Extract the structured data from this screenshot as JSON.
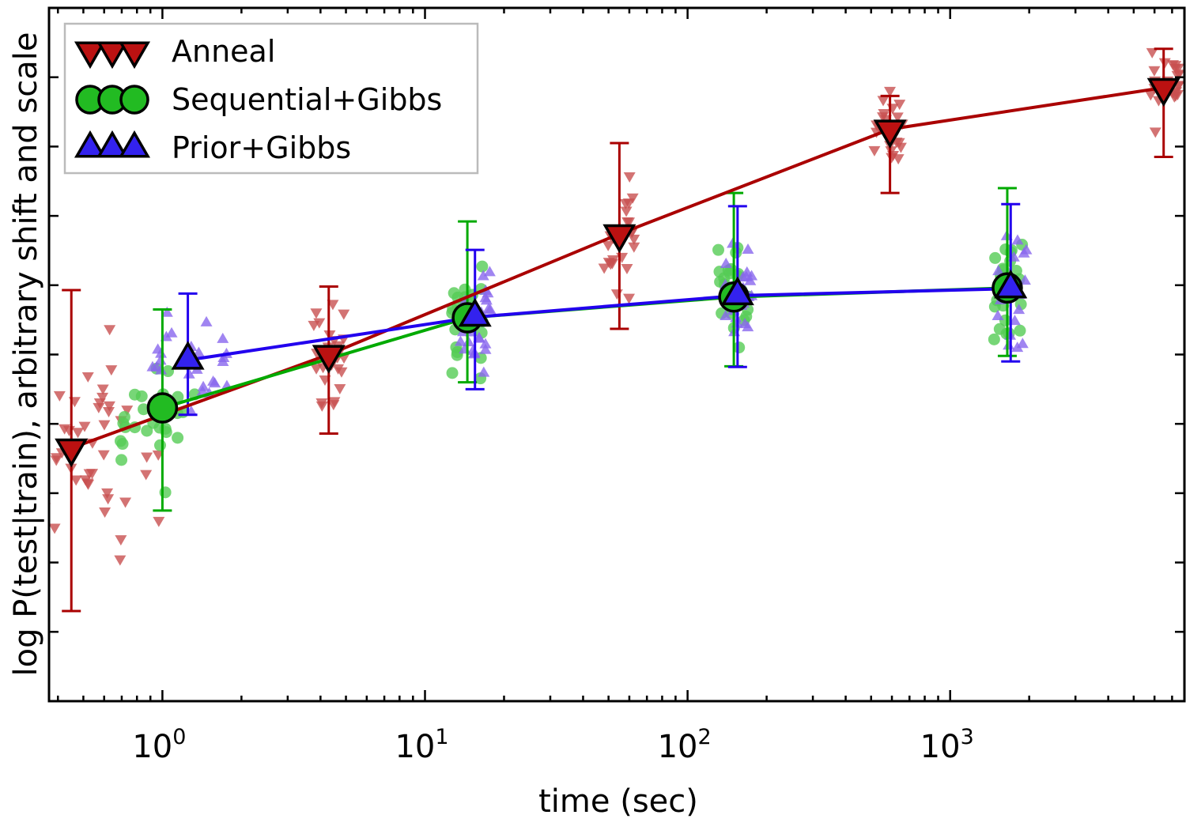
{
  "chart_data": {
    "type": "scatter",
    "title": "",
    "xlabel": "time (sec)",
    "ylabel": "log P(test|train),  arbitrary shift and scale",
    "xscale": "log",
    "xlim": [
      0.37,
      7800
    ],
    "ylim": [
      0,
      100
    ],
    "xticks": [
      {
        "value": 1,
        "base": "10",
        "exp": "0"
      },
      {
        "value": 10,
        "base": "10",
        "exp": "1"
      },
      {
        "value": 100,
        "base": "10",
        "exp": "2"
      },
      {
        "value": 1000,
        "base": "10",
        "exp": "3"
      }
    ],
    "y_tick_labels_visible": false,
    "legend_position": "top-left",
    "series": [
      {
        "name": "Anneal",
        "color": "#aa0000",
        "scatter_color": "#c85050",
        "marker": "triangle-down",
        "x": [
          0.45,
          4.3,
          55,
          590,
          6500
        ],
        "y": [
          36.5,
          50,
          67.4,
          82.5,
          88.5
        ],
        "err_low": [
          13,
          38.6,
          53.7,
          73.3,
          78.5
        ],
        "err_high": [
          59.3,
          59.8,
          80.5,
          87.3,
          94.1
        ]
      },
      {
        "name": "Sequential+Gibbs",
        "color": "#00aa00",
        "scatter_color": "#55cc55",
        "marker": "circle",
        "x": [
          1.0,
          14.5,
          150,
          1650
        ],
        "y": [
          42.3,
          55.3,
          58.3,
          59.6
        ],
        "err_low": [
          27.5,
          46,
          48.3,
          49.8
        ],
        "err_high": [
          56.5,
          69.2,
          73.3,
          74
        ]
      },
      {
        "name": "Prior+Gibbs",
        "color": "#2200ee",
        "scatter_color": "#8866ee",
        "marker": "triangle-up",
        "x": [
          1.25,
          15.5,
          155,
          1700
        ],
        "y": [
          49.2,
          55.4,
          58.5,
          59.5
        ],
        "err_low": [
          41.3,
          45,
          48.2,
          49
        ],
        "err_high": [
          58.8,
          65.1,
          71.4,
          71.7
        ]
      }
    ]
  }
}
